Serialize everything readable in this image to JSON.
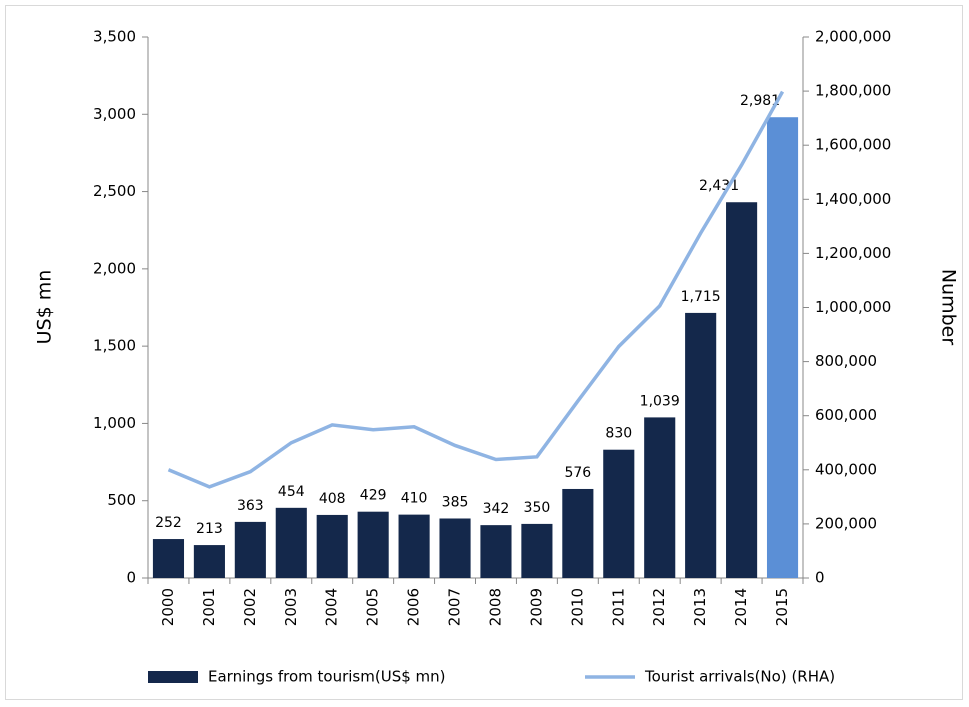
{
  "chart_data": {
    "type": "bar_line",
    "y_label": "US$ mn",
    "y2_label": "Number",
    "categories": [
      "2000",
      "2001",
      "2002",
      "2003",
      "2004",
      "2005",
      "2006",
      "2007",
      "2008",
      "2009",
      "2010",
      "2011",
      "2012",
      "2013",
      "2014",
      "2015"
    ],
    "series": [
      {
        "name": "Earnings from tourism(US$ mn)",
        "type": "bar",
        "color": "#14284b",
        "colors": [
          "#14284b",
          "#14284b",
          "#14284b",
          "#14284b",
          "#14284b",
          "#14284b",
          "#14284b",
          "#14284b",
          "#14284b",
          "#14284b",
          "#14284b",
          "#14284b",
          "#14284b",
          "#14284b",
          "#14284b",
          "#5b8fd6"
        ],
        "values": [
          252,
          213,
          363,
          454,
          408,
          429,
          410,
          385,
          342,
          350,
          576,
          830,
          1039,
          1715,
          2431,
          2981
        ],
        "value_labels": [
          "252",
          "213",
          "363",
          "454",
          "408",
          "429",
          "410",
          "385",
          "342",
          "350",
          "576",
          "830",
          "1,039",
          "1,715",
          "2,431",
          "2,981"
        ]
      },
      {
        "name": "Tourist arrivals(No) (RHA)",
        "type": "line",
        "axis": "y2",
        "color": "#8fb4e3",
        "values": [
          400000,
          337000,
          393000,
          500000,
          566000,
          548000,
          559000,
          490000,
          438000,
          448000,
          654000,
          856000,
          1006000,
          1275000,
          1527000,
          1798000
        ]
      }
    ],
    "ylim": [
      0,
      3500
    ],
    "yticks": [
      0,
      500,
      {
        "value": 1000,
        "label": "1,000"
      },
      {
        "value": 1500,
        "label": "1,500"
      },
      {
        "value": 2000,
        "label": "2,000"
      },
      {
        "value": 2500,
        "label": "2,500"
      },
      {
        "value": 3000,
        "label": "3,000"
      },
      {
        "value": 3500,
        "label": "3,500"
      }
    ],
    "y2lim": [
      0,
      2000000
    ],
    "y2ticks": [
      0,
      {
        "value": 200000,
        "label": "200,000"
      },
      {
        "value": 400000,
        "label": "400,000"
      },
      {
        "value": 600000,
        "label": "600,000"
      },
      {
        "value": 800000,
        "label": "800,000"
      },
      {
        "value": 1000000,
        "label": "1,000,000"
      },
      {
        "value": 1200000,
        "label": "1,200,000"
      },
      {
        "value": 1400000,
        "label": "1,400,000"
      },
      {
        "value": 1600000,
        "label": "1,600,000"
      },
      {
        "value": 1800000,
        "label": "1,800,000"
      },
      {
        "value": 2000000,
        "label": "2,000,000"
      }
    ],
    "grid": false,
    "legend": "bottom"
  }
}
